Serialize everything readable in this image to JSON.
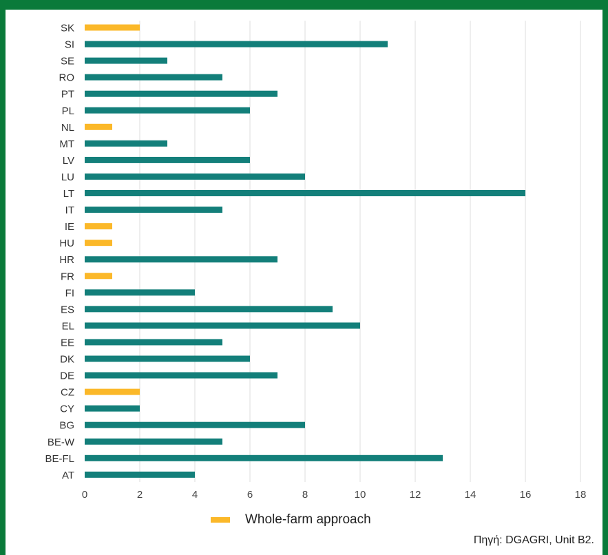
{
  "chart_data": {
    "type": "bar",
    "orientation": "horizontal",
    "categories": [
      "SK",
      "SI",
      "SE",
      "RO",
      "PT",
      "PL",
      "NL",
      "MT",
      "LV",
      "LU",
      "LT",
      "IT",
      "IE",
      "HU",
      "HR",
      "FR",
      "FI",
      "ES",
      "EL",
      "EE",
      "DK",
      "DE",
      "CZ",
      "CY",
      "BG",
      "BE-W",
      "BE-FL",
      "AT"
    ],
    "values": [
      2,
      11,
      3,
      5,
      7,
      6,
      1,
      3,
      6,
      8,
      16,
      5,
      1,
      1,
      7,
      1,
      4,
      9,
      10,
      5,
      6,
      7,
      2,
      2,
      8,
      5,
      13,
      4
    ],
    "whole_farm": [
      true,
      false,
      false,
      false,
      false,
      false,
      true,
      false,
      false,
      false,
      false,
      false,
      true,
      true,
      false,
      true,
      false,
      false,
      false,
      false,
      false,
      false,
      true,
      false,
      false,
      false,
      false,
      false
    ],
    "xlim": [
      0,
      18
    ],
    "xticks": [
      0,
      2,
      4,
      6,
      8,
      10,
      12,
      14,
      16,
      18
    ],
    "grid": "vertical",
    "legend": {
      "position": "bottom",
      "entries": [
        {
          "label": "Whole-farm approach",
          "color": "#fbb829"
        }
      ]
    },
    "colors": {
      "default": "#137f7a",
      "whole_farm": "#fbb829",
      "grid": "#dddddd",
      "tick": "#444444"
    }
  },
  "footer": {
    "source": "Πηγή: DGAGRI, Unit B2."
  }
}
